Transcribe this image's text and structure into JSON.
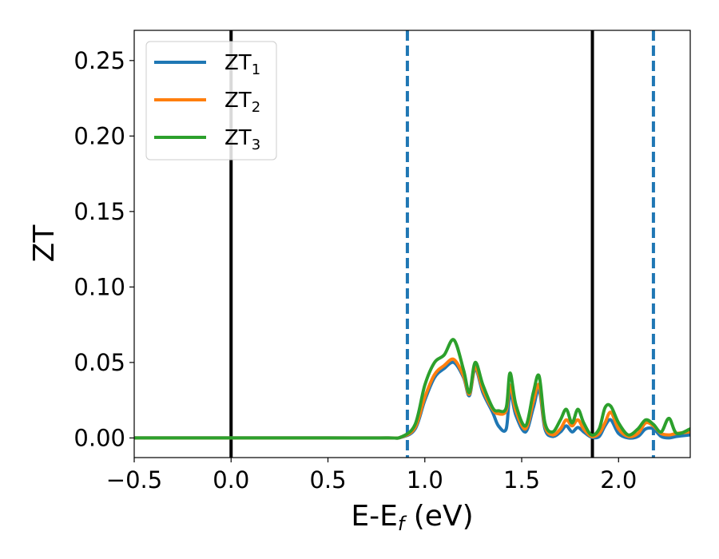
{
  "chart_data": {
    "type": "line",
    "xlabel_main": "E-E",
    "xlabel_sub": "f",
    "xlabel_unit": " (eV)",
    "ylabel": "ZT",
    "xlim": [
      -0.5,
      2.37
    ],
    "ylim": [
      -0.013,
      0.27
    ],
    "x_ticks": [
      -0.5,
      0.0,
      0.5,
      1.0,
      1.5,
      2.0
    ],
    "x_tick_labels": [
      "−0.5",
      "0.0",
      "0.5",
      "1.0",
      "1.5",
      "2.0"
    ],
    "y_ticks": [
      0.0,
      0.05,
      0.1,
      0.15,
      0.2,
      0.25
    ],
    "y_tick_labels": [
      "0.00",
      "0.05",
      "0.10",
      "0.15",
      "0.20",
      "0.25"
    ],
    "grid": false,
    "legend_position": "top-left",
    "vlines": [
      {
        "x": 0.0,
        "style": "solid",
        "color": "#000000"
      },
      {
        "x": 1.865,
        "style": "solid",
        "color": "#000000"
      },
      {
        "x": 0.91,
        "style": "dashed",
        "color": "#1f77b4"
      },
      {
        "x": 2.18,
        "style": "dashed",
        "color": "#1f77b4"
      }
    ],
    "series": [
      {
        "name_main": "ZT",
        "name_sub": "1",
        "color": "#1f77b4",
        "x": [
          -0.5,
          0.0,
          0.5,
          0.8,
          0.88,
          0.95,
          1.0,
          1.05,
          1.1,
          1.15,
          1.2,
          1.23,
          1.26,
          1.3,
          1.35,
          1.38,
          1.42,
          1.44,
          1.47,
          1.52,
          1.56,
          1.59,
          1.62,
          1.66,
          1.7,
          1.73,
          1.76,
          1.79,
          1.82,
          1.86,
          1.9,
          1.93,
          1.96,
          2.0,
          2.05,
          2.1,
          2.14,
          2.18,
          2.22,
          2.26,
          2.3,
          2.37
        ],
        "y": [
          0.0,
          0.0,
          0.0,
          0.0,
          0.0005,
          0.006,
          0.025,
          0.04,
          0.046,
          0.05,
          0.04,
          0.028,
          0.046,
          0.03,
          0.017,
          0.008,
          0.006,
          0.03,
          0.015,
          0.004,
          0.02,
          0.032,
          0.006,
          0.001,
          0.004,
          0.008,
          0.004,
          0.007,
          0.004,
          0.0005,
          0.001,
          0.008,
          0.012,
          0.003,
          0.0,
          0.001,
          0.006,
          0.006,
          0.001,
          0.0,
          0.001,
          0.002
        ]
      },
      {
        "name_main": "ZT",
        "name_sub": "2",
        "color": "#ff7f0e",
        "x": [
          -0.5,
          0.0,
          0.5,
          0.8,
          0.88,
          0.95,
          1.0,
          1.05,
          1.1,
          1.15,
          1.2,
          1.23,
          1.26,
          1.3,
          1.35,
          1.38,
          1.42,
          1.44,
          1.47,
          1.52,
          1.56,
          1.59,
          1.62,
          1.66,
          1.7,
          1.73,
          1.76,
          1.79,
          1.82,
          1.86,
          1.9,
          1.93,
          1.96,
          2.0,
          2.05,
          2.1,
          2.14,
          2.18,
          2.22,
          2.26,
          2.3,
          2.37
        ],
        "y": [
          0.0,
          0.0,
          0.0,
          0.0,
          0.0006,
          0.007,
          0.027,
          0.042,
          0.048,
          0.052,
          0.041,
          0.029,
          0.047,
          0.032,
          0.019,
          0.016,
          0.018,
          0.035,
          0.018,
          0.006,
          0.024,
          0.035,
          0.008,
          0.002,
          0.006,
          0.012,
          0.008,
          0.012,
          0.006,
          0.001,
          0.003,
          0.01,
          0.017,
          0.006,
          0.001,
          0.003,
          0.01,
          0.008,
          0.003,
          0.002,
          0.003,
          0.004
        ]
      },
      {
        "name_main": "ZT",
        "name_sub": "3",
        "color": "#2ca02c",
        "x": [
          -0.5,
          0.0,
          0.5,
          0.8,
          0.88,
          0.95,
          1.0,
          1.05,
          1.1,
          1.15,
          1.2,
          1.23,
          1.26,
          1.3,
          1.35,
          1.38,
          1.42,
          1.44,
          1.47,
          1.52,
          1.56,
          1.59,
          1.62,
          1.66,
          1.7,
          1.73,
          1.76,
          1.79,
          1.82,
          1.86,
          1.9,
          1.93,
          1.96,
          2.0,
          2.05,
          2.1,
          2.14,
          2.18,
          2.22,
          2.26,
          2.3,
          2.37
        ],
        "y": [
          0.0,
          0.0,
          0.0,
          0.0,
          0.0008,
          0.009,
          0.035,
          0.05,
          0.055,
          0.065,
          0.045,
          0.03,
          0.05,
          0.035,
          0.02,
          0.018,
          0.02,
          0.043,
          0.022,
          0.008,
          0.03,
          0.041,
          0.01,
          0.004,
          0.012,
          0.019,
          0.01,
          0.019,
          0.01,
          0.002,
          0.006,
          0.02,
          0.021,
          0.01,
          0.002,
          0.006,
          0.012,
          0.009,
          0.004,
          0.013,
          0.003,
          0.006
        ]
      }
    ]
  }
}
